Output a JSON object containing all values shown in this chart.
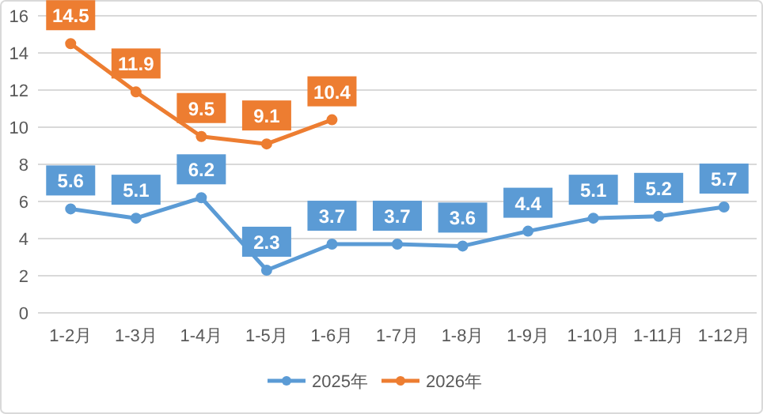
{
  "chart_data": {
    "type": "line",
    "categories": [
      "1-2月",
      "1-3月",
      "1-4月",
      "1-5月",
      "1-6月",
      "1-7月",
      "1-8月",
      "1-9月",
      "1-10月",
      "1-11月",
      "1-12月"
    ],
    "series": [
      {
        "name": "2025年",
        "color": "#5b9bd5",
        "values": [
          5.6,
          5.1,
          6.2,
          2.3,
          3.7,
          3.7,
          3.6,
          4.4,
          5.1,
          5.2,
          5.7
        ]
      },
      {
        "name": "2026年",
        "color": "#ed7d31",
        "values": [
          14.5,
          11.9,
          9.5,
          9.1,
          10.4,
          null,
          null,
          null,
          null,
          null,
          null
        ]
      }
    ],
    "ylim": [
      0,
      16
    ],
    "yticks": [
      0,
      2,
      4,
      6,
      8,
      10,
      12,
      14,
      16
    ],
    "grid": "y",
    "legend": "bottom",
    "marker": "circle",
    "line_style": "solid",
    "data_labels": true
  }
}
